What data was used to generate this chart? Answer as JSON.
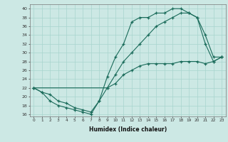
{
  "xlabel": "Humidex (Indice chaleur)",
  "ylabel": "",
  "xlim": [
    -0.5,
    23.5
  ],
  "ylim": [
    15.5,
    41
  ],
  "yticks": [
    16,
    18,
    20,
    22,
    24,
    26,
    28,
    30,
    32,
    34,
    36,
    38,
    40
  ],
  "xticks": [
    0,
    1,
    2,
    3,
    4,
    5,
    6,
    7,
    8,
    9,
    10,
    11,
    12,
    13,
    14,
    15,
    16,
    17,
    18,
    19,
    20,
    21,
    22,
    23
  ],
  "bg_color": "#cce8e4",
  "grid_color": "#a8d4ce",
  "line_color": "#1a6b5a",
  "series1_x": [
    0,
    1,
    2,
    3,
    4,
    5,
    6,
    7,
    8,
    9,
    10,
    11,
    12,
    13,
    14,
    15,
    16,
    17,
    18,
    19,
    20,
    21,
    22,
    23
  ],
  "series1_y": [
    22,
    21,
    19,
    18,
    17.5,
    17,
    16.5,
    16,
    19,
    24.5,
    29,
    32,
    37,
    38,
    38,
    39,
    39,
    40,
    40,
    39,
    38,
    32,
    28,
    29
  ],
  "series2_x": [
    0,
    9,
    10,
    11,
    12,
    13,
    14,
    15,
    16,
    17,
    18,
    19,
    20,
    21,
    22,
    23
  ],
  "series2_y": [
    22,
    22,
    25,
    28,
    30,
    32,
    34,
    36,
    37,
    38,
    39,
    39,
    38,
    34,
    29,
    29
  ],
  "series3_x": [
    0,
    1,
    2,
    3,
    4,
    5,
    6,
    7,
    8,
    9,
    10,
    11,
    12,
    13,
    14,
    15,
    16,
    17,
    18,
    19,
    20,
    21,
    22,
    23
  ],
  "series3_y": [
    22,
    21,
    20.5,
    19,
    18.5,
    17.5,
    17,
    16.5,
    19,
    22,
    23,
    25,
    26,
    27,
    27.5,
    27.5,
    27.5,
    27.5,
    28,
    28,
    28,
    27.5,
    28,
    29
  ]
}
